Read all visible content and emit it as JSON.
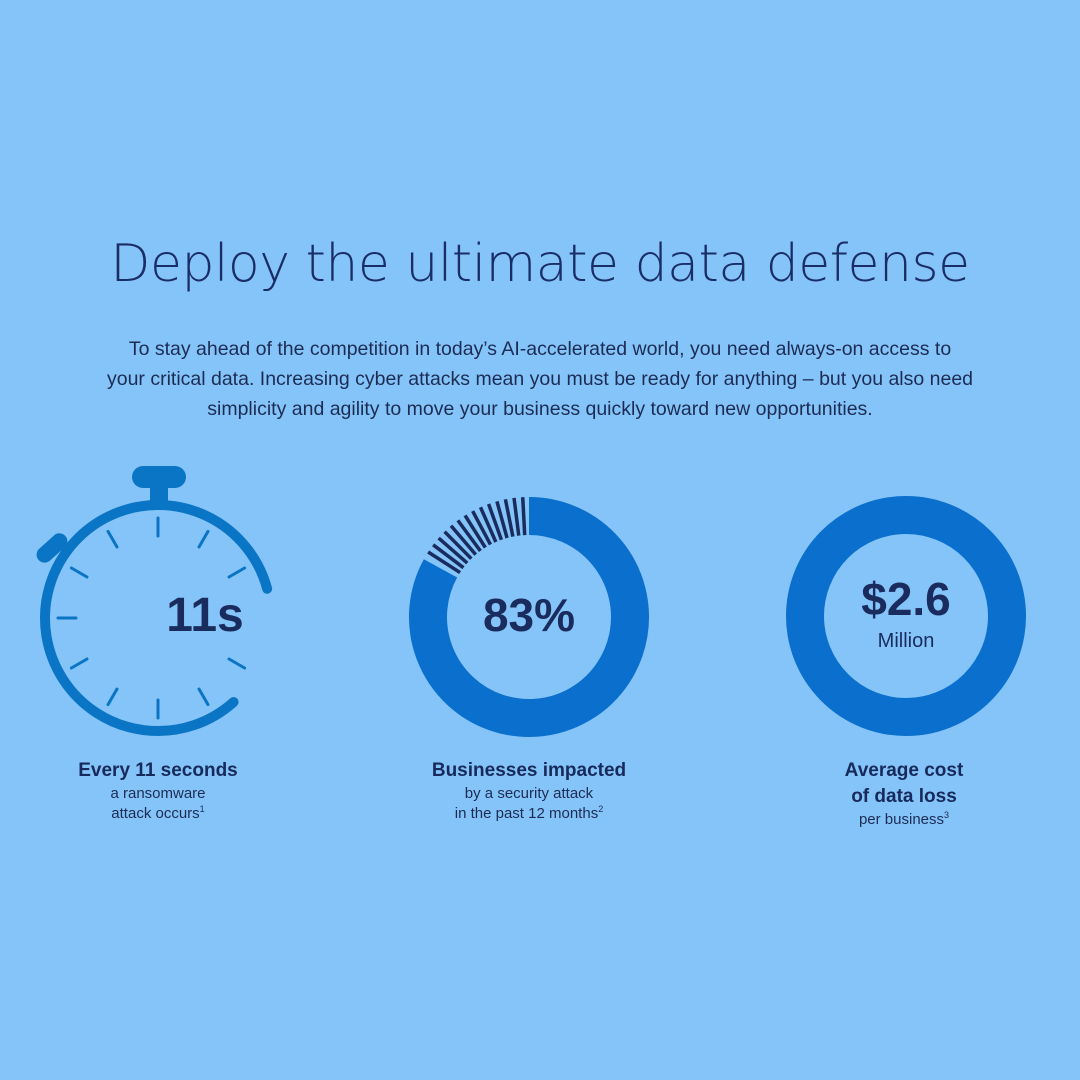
{
  "page": {
    "title": "Deploy the ultimate data defense",
    "intro_lines": [
      "To stay ahead of the competition in today’s AI-accelerated world, you need always-on access to",
      "your critical data. Increasing cyber attacks mean you must be ready for anything – but you also need",
      "simplicity and agility to move your business quickly toward new opportunities."
    ]
  },
  "stats": [
    {
      "value": "11s",
      "graphic": "stopwatch-icon",
      "headline": "Every 11 seconds",
      "detail_lines": [
        "a ransomware",
        "attack occurs"
      ],
      "footnote": "1"
    },
    {
      "value": "83%",
      "graphic": "donut-gauge",
      "percent": 83,
      "headline": "Businesses impacted",
      "detail_lines": [
        "by a security attack",
        "in the past 12 months"
      ],
      "footnote": "2"
    },
    {
      "value": "$2.6",
      "value_unit": "Million",
      "graphic": "ring-gauge",
      "headline_lines": [
        "Average cost",
        "of data loss"
      ],
      "detail_lines": [
        "per business"
      ],
      "footnote": "3"
    }
  ],
  "colors": {
    "background": "#84c4f8",
    "accent_blue": "#0a6fcd",
    "stopwatch_blue": "#0b75c5",
    "text_dark": "#1a2b5e"
  }
}
